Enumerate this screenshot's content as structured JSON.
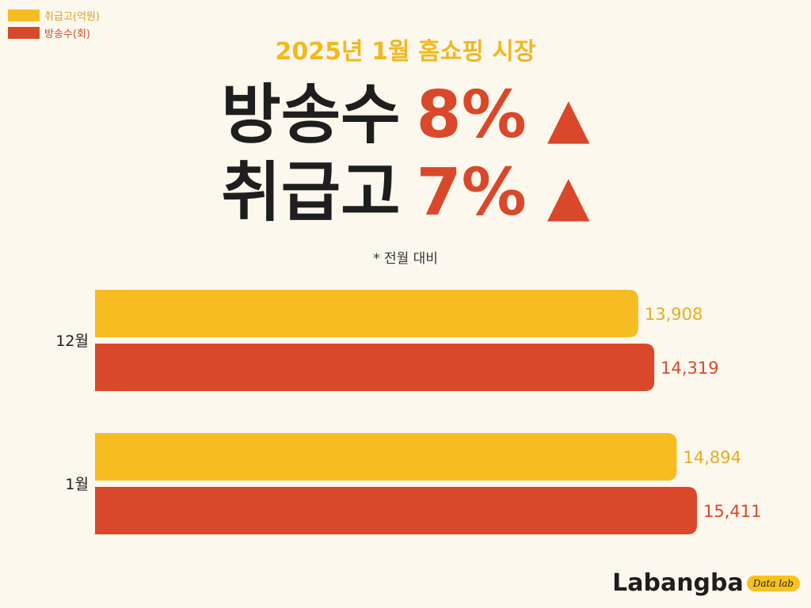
{
  "legend": [
    {
      "label": "취급고(억원)",
      "color": "#f6bc22"
    },
    {
      "label": "방송수(회)",
      "color": "#d9482a"
    }
  ],
  "subtitle": "2025년 1월 홈쇼핑 시장",
  "headline": {
    "line1": {
      "label": "방송수",
      "pct": "8%",
      "arrow": "▲"
    },
    "line2": {
      "label": "취급고",
      "pct": "7%",
      "arrow": "▲"
    }
  },
  "note": "* 전월 대비",
  "chart_data": {
    "type": "bar",
    "orientation": "horizontal",
    "categories": [
      "12월",
      "1월"
    ],
    "series": [
      {
        "name": "취급고(억원)",
        "color": "#f6bc22",
        "label_color": "#e6ac1c",
        "values": [
          13908,
          14894
        ],
        "labels": [
          "13,908",
          "14,894"
        ]
      },
      {
        "name": "방송수(회)",
        "color": "#d9482a",
        "label_color": "#d9482a",
        "values": [
          14319,
          15411
        ],
        "labels": [
          "14,319",
          "15,411"
        ]
      }
    ]
  },
  "brand": {
    "name": "Labangba",
    "tag": "Data lab"
  }
}
